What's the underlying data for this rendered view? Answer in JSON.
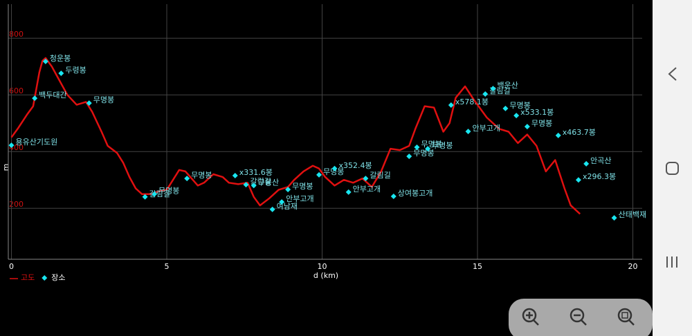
{
  "chart_data": {
    "type": "line",
    "x_label": "d (km)",
    "y_label": "m",
    "xlim": [
      -0.1,
      20.3
    ],
    "xticks": [
      0,
      5,
      10,
      15,
      20
    ],
    "ylim": [
      20,
      920
    ],
    "yticks": [
      200,
      400,
      600,
      800
    ],
    "grid": true,
    "legend": "bottom-left",
    "series": [
      {
        "name": "고도",
        "type": "line",
        "color": "#e01010",
        "x": [
          0,
          0.2,
          0.5,
          0.7,
          0.9,
          1.0,
          1.1,
          1.3,
          1.5,
          1.8,
          2.1,
          2.4,
          2.6,
          2.9,
          3.1,
          3.4,
          3.6,
          3.8,
          4.0,
          4.2,
          4.5,
          4.8,
          5.0,
          5.2,
          5.4,
          5.6,
          5.8,
          6.0,
          6.2,
          6.5,
          6.8,
          7.0,
          7.3,
          7.6,
          7.8,
          8.0,
          8.3,
          8.6,
          8.9,
          9.1,
          9.4,
          9.7,
          9.9,
          10.1,
          10.4,
          10.7,
          11.0,
          11.3,
          11.6,
          11.9,
          12.2,
          12.5,
          12.8,
          13.0,
          13.3,
          13.6,
          13.9,
          14.1,
          14.3,
          14.6,
          14.9,
          15.3,
          15.7,
          16.0,
          16.3,
          16.6,
          16.9,
          17.2,
          17.5,
          17.8,
          18.0,
          18.3
        ],
        "values": [
          450,
          480,
          530,
          560,
          680,
          720,
          730,
          700,
          660,
          600,
          565,
          575,
          540,
          470,
          420,
          395,
          360,
          310,
          270,
          250,
          250,
          262,
          265,
          300,
          335,
          330,
          305,
          280,
          290,
          320,
          310,
          290,
          285,
          290,
          240,
          210,
          235,
          265,
          275,
          300,
          330,
          350,
          340,
          310,
          280,
          300,
          290,
          305,
          275,
          330,
          410,
          405,
          420,
          480,
          560,
          555,
          470,
          500,
          590,
          630,
          580,
          520,
          480,
          470,
          430,
          460,
          420,
          330,
          370,
          270,
          210,
          180
        ]
      },
      {
        "name": "장소",
        "type": "scatter",
        "color": "#19e6f0",
        "labels": [
          "용유산기도원",
          "백두대간",
          "청운봉",
          "두령봉",
          "무명봉",
          "갈림길",
          "무명봉",
          "무명봉",
          "x331.6봉",
          "갈림길",
          "구봉산",
          "여남재",
          "안부고개",
          "무명봉",
          "무명봉",
          "x352.4봉",
          "안부고개",
          "갈림길",
          "상여봉고개",
          "무명봉",
          "무명봉",
          "무명봉",
          "x578.1봉",
          "안부고개",
          "갈림길",
          "백운산",
          "무명봉",
          "x533.1봉",
          "무명봉",
          "x463.7봉",
          "안곡산",
          "x296.3봉",
          "산태백재"
        ],
        "x": [
          0.0,
          0.75,
          1.1,
          1.6,
          2.5,
          4.3,
          4.6,
          5.65,
          7.2,
          7.55,
          7.8,
          8.4,
          8.7,
          8.9,
          9.9,
          10.4,
          10.85,
          11.4,
          12.3,
          12.8,
          13.05,
          13.4,
          14.15,
          14.7,
          15.25,
          15.5,
          15.9,
          16.25,
          16.6,
          17.6,
          18.5,
          18.25,
          19.4
        ],
        "values": [
          422,
          588,
          718,
          676,
          571,
          240,
          250,
          305,
          315,
          283,
          280,
          196,
          222,
          266,
          318,
          340,
          257,
          305,
          242,
          383,
          415,
          410,
          564,
          471,
          603,
          622,
          552,
          527,
          488,
          457,
          357,
          300,
          166
        ]
      }
    ]
  }
}
